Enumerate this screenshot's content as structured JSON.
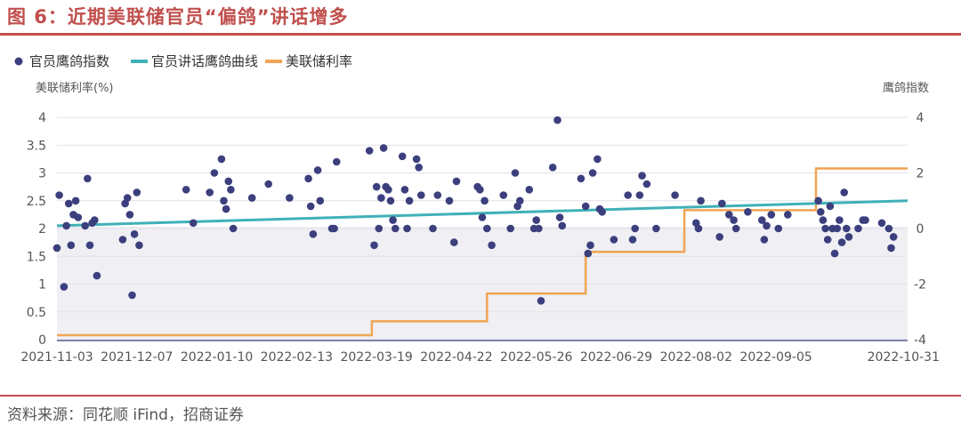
{
  "figure_title": "图 6：近期美联储官员“偏鸽”讲话增多",
  "source": "资料来源：同花顺 iFind，招商证券",
  "chart_data": {
    "type": "line",
    "title": "图 6：近期美联储官员“偏鸽”讲话增多",
    "ylabel_left": "美联储利率(%)",
    "ylabel_right": "鹰鸽指数",
    "ylim_left": [
      0,
      4
    ],
    "ylim_right": [
      -4,
      4
    ],
    "yticks_left": [
      "0",
      "0.5",
      "1",
      "1.5",
      "2",
      "2.5",
      "3",
      "3.5",
      "4"
    ],
    "yticks_right": [
      "-4",
      "-2",
      "0",
      "2",
      "4"
    ],
    "x_range": [
      "2021-11-03",
      "2022-10-31"
    ],
    "x_ticks": [
      "2021-11-03",
      "2021-12-07",
      "2022-01-10",
      "2022-02-13",
      "2022-03-19",
      "2022-04-22",
      "2022-05-26",
      "2022-06-29",
      "2022-08-02",
      "2022-09-05",
      "2022-10-31"
    ],
    "legend": [
      "官员鹰鸽指数",
      "官员讲话鹰鸽曲线",
      "美联储利率"
    ],
    "colors": {
      "dots": "#3b3f7d",
      "trend": "#3fb1b8",
      "rate": "#f0a553",
      "band": "#efeff4"
    },
    "series": [
      {
        "name": "官员鹰鸽指数",
        "axis": "right",
        "kind": "scatter",
        "points": [
          [
            "2021-11-03",
            -0.7
          ],
          [
            "2021-11-04",
            1.2
          ],
          [
            "2021-11-06",
            -2.1
          ],
          [
            "2021-11-07",
            0.1
          ],
          [
            "2021-11-08",
            0.9
          ],
          [
            "2021-11-09",
            -0.6
          ],
          [
            "2021-11-10",
            0.5
          ],
          [
            "2021-11-11",
            1.0
          ],
          [
            "2021-11-12",
            0.4
          ],
          [
            "2021-11-15",
            0.1
          ],
          [
            "2021-11-16",
            1.8
          ],
          [
            "2021-11-17",
            -0.6
          ],
          [
            "2021-11-18",
            0.2
          ],
          [
            "2021-11-19",
            0.3
          ],
          [
            "2021-11-20",
            -1.7
          ],
          [
            "2021-12-01",
            -0.4
          ],
          [
            "2021-12-02",
            0.9
          ],
          [
            "2021-12-03",
            1.1
          ],
          [
            "2021-12-04",
            0.5
          ],
          [
            "2021-12-05",
            -2.4
          ],
          [
            "2021-12-06",
            -0.2
          ],
          [
            "2021-12-07",
            1.3
          ],
          [
            "2021-12-08",
            -0.6
          ],
          [
            "2021-12-28",
            1.4
          ],
          [
            "2021-12-31",
            0.2
          ],
          [
            "2022-01-07",
            1.3
          ],
          [
            "2022-01-09",
            2.0
          ],
          [
            "2022-01-12",
            2.5
          ],
          [
            "2022-01-13",
            1.0
          ],
          [
            "2022-01-14",
            0.7
          ],
          [
            "2022-01-15",
            1.7
          ],
          [
            "2022-01-16",
            1.4
          ],
          [
            "2022-01-17",
            0.0
          ],
          [
            "2022-01-25",
            1.1
          ],
          [
            "2022-02-01",
            1.6
          ],
          [
            "2022-02-10",
            1.1
          ],
          [
            "2022-02-18",
            1.8
          ],
          [
            "2022-02-19",
            0.8
          ],
          [
            "2022-02-20",
            -0.2
          ],
          [
            "2022-02-22",
            2.1
          ],
          [
            "2022-02-23",
            1.0
          ],
          [
            "2022-02-28",
            0.0
          ],
          [
            "2022-03-01",
            0.0
          ],
          [
            "2022-03-02",
            2.4
          ],
          [
            "2022-03-16",
            2.8
          ],
          [
            "2022-03-18",
            -0.6
          ],
          [
            "2022-03-19",
            1.5
          ],
          [
            "2022-03-20",
            0.0
          ],
          [
            "2022-03-21",
            1.1
          ],
          [
            "2022-03-22",
            2.9
          ],
          [
            "2022-03-23",
            1.5
          ],
          [
            "2022-03-24",
            1.4
          ],
          [
            "2022-03-25",
            1.0
          ],
          [
            "2022-03-26",
            0.3
          ],
          [
            "2022-03-27",
            0.0
          ],
          [
            "2022-03-30",
            2.6
          ],
          [
            "2022-03-31",
            1.4
          ],
          [
            "2022-04-01",
            0.0
          ],
          [
            "2022-04-02",
            1.0
          ],
          [
            "2022-04-05",
            2.5
          ],
          [
            "2022-04-06",
            2.2
          ],
          [
            "2022-04-07",
            1.2
          ],
          [
            "2022-04-12",
            0.0
          ],
          [
            "2022-04-14",
            1.2
          ],
          [
            "2022-04-19",
            1.0
          ],
          [
            "2022-04-21",
            -0.5
          ],
          [
            "2022-04-22",
            1.7
          ],
          [
            "2022-05-01",
            1.5
          ],
          [
            "2022-05-02",
            1.4
          ],
          [
            "2022-05-03",
            0.4
          ],
          [
            "2022-05-04",
            1.0
          ],
          [
            "2022-05-05",
            0.0
          ],
          [
            "2022-05-07",
            -0.6
          ],
          [
            "2022-05-12",
            1.2
          ],
          [
            "2022-05-15",
            0.0
          ],
          [
            "2022-05-17",
            2.0
          ],
          [
            "2022-05-18",
            0.8
          ],
          [
            "2022-05-19",
            1.0
          ],
          [
            "2022-05-23",
            1.4
          ],
          [
            "2022-05-25",
            0.0
          ],
          [
            "2022-05-26",
            0.3
          ],
          [
            "2022-05-27",
            0.0
          ],
          [
            "2022-05-28",
            -2.6
          ],
          [
            "2022-06-02",
            2.2
          ],
          [
            "2022-06-04",
            3.9
          ],
          [
            "2022-06-05",
            0.4
          ],
          [
            "2022-06-06",
            0.1
          ],
          [
            "2022-06-14",
            1.8
          ],
          [
            "2022-06-16",
            0.8
          ],
          [
            "2022-06-17",
            -0.9
          ],
          [
            "2022-06-18",
            -0.6
          ],
          [
            "2022-06-19",
            2.0
          ],
          [
            "2022-06-21",
            2.5
          ],
          [
            "2022-06-22",
            0.7
          ],
          [
            "2022-06-23",
            0.6
          ],
          [
            "2022-06-28",
            -0.4
          ],
          [
            "2022-07-04",
            1.2
          ],
          [
            "2022-07-06",
            -0.4
          ],
          [
            "2022-07-07",
            0.0
          ],
          [
            "2022-07-09",
            1.2
          ],
          [
            "2022-07-10",
            1.9
          ],
          [
            "2022-07-12",
            1.6
          ],
          [
            "2022-07-16",
            0.0
          ],
          [
            "2022-07-24",
            1.2
          ],
          [
            "2022-08-02",
            0.2
          ],
          [
            "2022-08-03",
            0.0
          ],
          [
            "2022-08-04",
            1.0
          ],
          [
            "2022-08-12",
            -0.3
          ],
          [
            "2022-08-13",
            0.9
          ],
          [
            "2022-08-16",
            0.5
          ],
          [
            "2022-08-18",
            0.3
          ],
          [
            "2022-08-19",
            0.0
          ],
          [
            "2022-08-24",
            0.6
          ],
          [
            "2022-08-30",
            0.3
          ],
          [
            "2022-08-31",
            -0.4
          ],
          [
            "2022-09-01",
            0.1
          ],
          [
            "2022-09-03",
            0.5
          ],
          [
            "2022-09-06",
            0.0
          ],
          [
            "2022-09-10",
            0.5
          ],
          [
            "2022-09-23",
            1.0
          ],
          [
            "2022-09-24",
            0.6
          ],
          [
            "2022-09-25",
            0.3
          ],
          [
            "2022-09-26",
            0.0
          ],
          [
            "2022-09-27",
            -0.4
          ],
          [
            "2022-09-28",
            0.8
          ],
          [
            "2022-09-29",
            0.0
          ],
          [
            "2022-09-30",
            -0.9
          ],
          [
            "2022-10-01",
            0.0
          ],
          [
            "2022-10-02",
            0.3
          ],
          [
            "2022-10-03",
            -0.5
          ],
          [
            "2022-10-04",
            1.3
          ],
          [
            "2022-10-05",
            0.0
          ],
          [
            "2022-10-06",
            -0.3
          ],
          [
            "2022-10-10",
            0.0
          ],
          [
            "2022-10-12",
            0.3
          ],
          [
            "2022-10-13",
            0.3
          ],
          [
            "2022-10-20",
            0.2
          ],
          [
            "2022-10-23",
            0.0
          ],
          [
            "2022-10-24",
            -0.7
          ],
          [
            "2022-10-25",
            -0.3
          ]
        ]
      },
      {
        "name": "官员讲话鹰鸽曲线",
        "axis": "left",
        "kind": "line",
        "points": [
          [
            "2021-11-03",
            2.05
          ],
          [
            "2022-10-31",
            2.5
          ]
        ]
      },
      {
        "name": "美联储利率",
        "axis": "left",
        "kind": "step",
        "points": [
          [
            "2021-11-03",
            0.08
          ],
          [
            "2022-03-17",
            0.08
          ],
          [
            "2022-03-17",
            0.33
          ],
          [
            "2022-05-05",
            0.33
          ],
          [
            "2022-05-05",
            0.83
          ],
          [
            "2022-06-16",
            0.83
          ],
          [
            "2022-06-16",
            1.58
          ],
          [
            "2022-07-28",
            1.58
          ],
          [
            "2022-07-28",
            2.33
          ],
          [
            "2022-09-22",
            2.33
          ],
          [
            "2022-09-22",
            3.08
          ],
          [
            "2022-10-31",
            3.08
          ]
        ]
      }
    ]
  }
}
